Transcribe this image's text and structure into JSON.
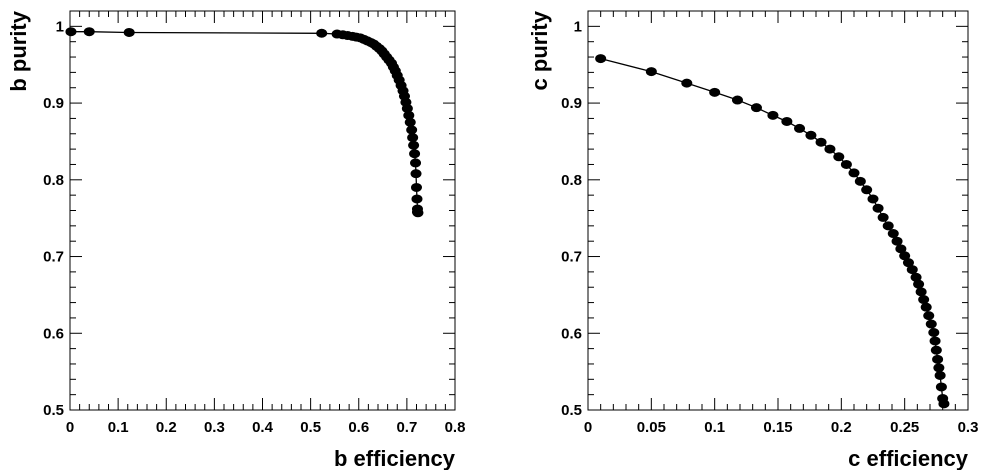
{
  "chart_data": [
    {
      "type": "scatter",
      "xlabel": "b efficiency",
      "ylabel": "b purity",
      "xlim": [
        0,
        0.8
      ],
      "ylim": [
        0.5,
        1.02
      ],
      "xticks": [
        0,
        0.1,
        0.2,
        0.3,
        0.4,
        0.5,
        0.6,
        0.7,
        0.8
      ],
      "yticks": [
        0.5,
        0.6,
        0.7,
        0.8,
        0.9,
        1
      ],
      "xticklabels": [
        "0",
        "0.1",
        "0.2",
        "0.3",
        "0.4",
        "0.5",
        "0.6",
        "0.7",
        "0.8"
      ],
      "yticklabels": [
        "0.5",
        "0.6",
        "0.7",
        "0.8",
        "0.9",
        "1"
      ],
      "grid": false,
      "marker": "filled-circle",
      "line": true,
      "x": [
        0.002,
        0.04,
        0.123,
        0.523,
        0.555,
        0.567,
        0.577,
        0.587,
        0.595,
        0.603,
        0.611,
        0.618,
        0.625,
        0.631,
        0.637,
        0.643,
        0.648,
        0.653,
        0.658,
        0.663,
        0.668,
        0.672,
        0.676,
        0.68,
        0.684,
        0.688,
        0.692,
        0.695,
        0.698,
        0.701,
        0.704,
        0.707,
        0.71,
        0.712,
        0.714,
        0.716,
        0.718,
        0.719,
        0.72,
        0.721,
        0.722,
        0.722,
        0.723
      ],
      "y": [
        0.993,
        0.993,
        0.992,
        0.991,
        0.99,
        0.989,
        0.988,
        0.987,
        0.986,
        0.985,
        0.983,
        0.981,
        0.979,
        0.977,
        0.974,
        0.971,
        0.968,
        0.964,
        0.96,
        0.956,
        0.952,
        0.947,
        0.942,
        0.936,
        0.93,
        0.923,
        0.916,
        0.909,
        0.901,
        0.893,
        0.884,
        0.875,
        0.865,
        0.855,
        0.845,
        0.834,
        0.822,
        0.808,
        0.79,
        0.775,
        0.762,
        0.758,
        0.757
      ]
    },
    {
      "type": "scatter",
      "xlabel": "c efficiency",
      "ylabel": "c purity",
      "xlim": [
        0,
        0.3
      ],
      "ylim": [
        0.5,
        1.02
      ],
      "xticks": [
        0,
        0.05,
        0.1,
        0.15,
        0.2,
        0.25,
        0.3
      ],
      "yticks": [
        0.5,
        0.6,
        0.7,
        0.8,
        0.9,
        1
      ],
      "xticklabels": [
        "0",
        "0.05",
        "0.1",
        "0.15",
        "0.2",
        "0.25",
        "0.3"
      ],
      "yticklabels": [
        "0.5",
        "0.6",
        "0.7",
        "0.8",
        "0.9",
        "1"
      ],
      "grid": false,
      "marker": "filled-circle",
      "line": true,
      "x": [
        0.01,
        0.05,
        0.078,
        0.1,
        0.118,
        0.133,
        0.146,
        0.157,
        0.167,
        0.176,
        0.184,
        0.191,
        0.198,
        0.204,
        0.21,
        0.215,
        0.22,
        0.225,
        0.229,
        0.233,
        0.237,
        0.241,
        0.244,
        0.247,
        0.25,
        0.253,
        0.256,
        0.259,
        0.261,
        0.263,
        0.265,
        0.267,
        0.269,
        0.271,
        0.273,
        0.274,
        0.275,
        0.276,
        0.277,
        0.278,
        0.279,
        0.28,
        0.281
      ],
      "y": [
        0.958,
        0.941,
        0.926,
        0.914,
        0.904,
        0.894,
        0.884,
        0.876,
        0.867,
        0.858,
        0.849,
        0.84,
        0.83,
        0.82,
        0.809,
        0.798,
        0.787,
        0.775,
        0.763,
        0.751,
        0.74,
        0.73,
        0.72,
        0.71,
        0.701,
        0.692,
        0.683,
        0.673,
        0.664,
        0.654,
        0.644,
        0.634,
        0.623,
        0.612,
        0.601,
        0.59,
        0.578,
        0.566,
        0.555,
        0.545,
        0.53,
        0.515,
        0.508
      ]
    }
  ]
}
